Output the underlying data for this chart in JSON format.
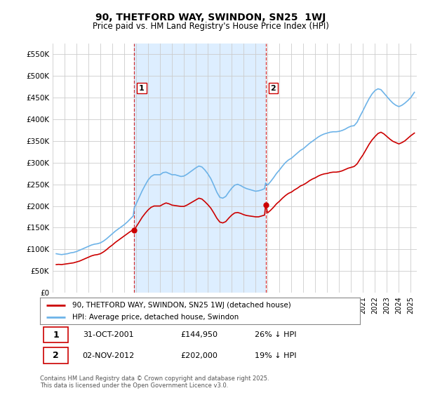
{
  "title": "90, THETFORD WAY, SWINDON, SN25  1WJ",
  "subtitle": "Price paid vs. HM Land Registry's House Price Index (HPI)",
  "ylim": [
    0,
    575000
  ],
  "yticks": [
    0,
    50000,
    100000,
    150000,
    200000,
    250000,
    300000,
    350000,
    400000,
    450000,
    500000,
    550000
  ],
  "xlim_start": 1995.3,
  "xlim_end": 2025.5,
  "background_color": "#ffffff",
  "plot_bg_color": "#ffffff",
  "shade_color": "#ddeeff",
  "hpi_color": "#6db3e8",
  "price_color": "#cc0000",
  "purchase1_date": 2001.83,
  "purchase1_price": 144950,
  "purchase2_date": 2012.84,
  "purchase2_price": 202000,
  "legend_label1": "90, THETFORD WAY, SWINDON, SN25 1WJ (detached house)",
  "legend_label2": "HPI: Average price, detached house, Swindon",
  "table_row1": [
    "1",
    "31-OCT-2001",
    "£144,950",
    "26% ↓ HPI"
  ],
  "table_row2": [
    "2",
    "02-NOV-2012",
    "£202,000",
    "19% ↓ HPI"
  ],
  "footnote": "Contains HM Land Registry data © Crown copyright and database right 2025.\nThis data is licensed under the Open Government Licence v3.0.",
  "hpi_data": [
    [
      1995.3,
      90000
    ],
    [
      1995.5,
      89000
    ],
    [
      1995.75,
      88000
    ],
    [
      1996.0,
      89000
    ],
    [
      1996.25,
      90000
    ],
    [
      1996.5,
      92000
    ],
    [
      1996.75,
      93000
    ],
    [
      1997.0,
      95000
    ],
    [
      1997.25,
      98000
    ],
    [
      1997.5,
      101000
    ],
    [
      1997.75,
      104000
    ],
    [
      1998.0,
      107000
    ],
    [
      1998.25,
      110000
    ],
    [
      1998.5,
      112000
    ],
    [
      1998.75,
      113000
    ],
    [
      1999.0,
      115000
    ],
    [
      1999.25,
      119000
    ],
    [
      1999.5,
      124000
    ],
    [
      1999.75,
      130000
    ],
    [
      2000.0,
      136000
    ],
    [
      2000.25,
      142000
    ],
    [
      2000.5,
      147000
    ],
    [
      2000.75,
      152000
    ],
    [
      2001.0,
      157000
    ],
    [
      2001.25,
      163000
    ],
    [
      2001.5,
      170000
    ],
    [
      2001.75,
      177000
    ],
    [
      2001.83,
      195000
    ],
    [
      2002.0,
      205000
    ],
    [
      2002.25,
      220000
    ],
    [
      2002.5,
      235000
    ],
    [
      2002.75,
      248000
    ],
    [
      2003.0,
      260000
    ],
    [
      2003.25,
      268000
    ],
    [
      2003.5,
      272000
    ],
    [
      2003.75,
      272000
    ],
    [
      2004.0,
      272000
    ],
    [
      2004.25,
      277000
    ],
    [
      2004.5,
      278000
    ],
    [
      2004.75,
      275000
    ],
    [
      2005.0,
      272000
    ],
    [
      2005.25,
      272000
    ],
    [
      2005.5,
      270000
    ],
    [
      2005.75,
      268000
    ],
    [
      2006.0,
      269000
    ],
    [
      2006.25,
      273000
    ],
    [
      2006.5,
      278000
    ],
    [
      2006.75,
      283000
    ],
    [
      2007.0,
      288000
    ],
    [
      2007.25,
      292000
    ],
    [
      2007.5,
      290000
    ],
    [
      2007.75,
      283000
    ],
    [
      2008.0,
      274000
    ],
    [
      2008.25,
      263000
    ],
    [
      2008.5,
      248000
    ],
    [
      2008.75,
      232000
    ],
    [
      2009.0,
      220000
    ],
    [
      2009.25,
      218000
    ],
    [
      2009.5,
      222000
    ],
    [
      2009.75,
      232000
    ],
    [
      2010.0,
      241000
    ],
    [
      2010.25,
      248000
    ],
    [
      2010.5,
      250000
    ],
    [
      2010.75,
      247000
    ],
    [
      2011.0,
      243000
    ],
    [
      2011.25,
      240000
    ],
    [
      2011.5,
      238000
    ],
    [
      2011.75,
      236000
    ],
    [
      2012.0,
      234000
    ],
    [
      2012.25,
      235000
    ],
    [
      2012.5,
      237000
    ],
    [
      2012.75,
      240000
    ],
    [
      2012.84,
      253000
    ],
    [
      2013.0,
      248000
    ],
    [
      2013.25,
      256000
    ],
    [
      2013.5,
      265000
    ],
    [
      2013.75,
      275000
    ],
    [
      2014.0,
      283000
    ],
    [
      2014.25,
      292000
    ],
    [
      2014.5,
      300000
    ],
    [
      2014.75,
      306000
    ],
    [
      2015.0,
      310000
    ],
    [
      2015.25,
      316000
    ],
    [
      2015.5,
      322000
    ],
    [
      2015.75,
      328000
    ],
    [
      2016.0,
      332000
    ],
    [
      2016.25,
      338000
    ],
    [
      2016.5,
      344000
    ],
    [
      2016.75,
      349000
    ],
    [
      2017.0,
      354000
    ],
    [
      2017.25,
      359000
    ],
    [
      2017.5,
      363000
    ],
    [
      2017.75,
      366000
    ],
    [
      2018.0,
      368000
    ],
    [
      2018.25,
      370000
    ],
    [
      2018.5,
      371000
    ],
    [
      2018.75,
      371000
    ],
    [
      2019.0,
      372000
    ],
    [
      2019.25,
      374000
    ],
    [
      2019.5,
      377000
    ],
    [
      2019.75,
      381000
    ],
    [
      2020.0,
      384000
    ],
    [
      2020.25,
      385000
    ],
    [
      2020.5,
      393000
    ],
    [
      2020.75,
      407000
    ],
    [
      2021.0,
      420000
    ],
    [
      2021.25,
      434000
    ],
    [
      2021.5,
      447000
    ],
    [
      2021.75,
      458000
    ],
    [
      2022.0,
      466000
    ],
    [
      2022.25,
      470000
    ],
    [
      2022.5,
      468000
    ],
    [
      2022.75,
      460000
    ],
    [
      2023.0,
      452000
    ],
    [
      2023.25,
      444000
    ],
    [
      2023.5,
      437000
    ],
    [
      2023.75,
      432000
    ],
    [
      2024.0,
      429000
    ],
    [
      2024.25,
      432000
    ],
    [
      2024.5,
      437000
    ],
    [
      2024.75,
      443000
    ],
    [
      2025.0,
      450000
    ],
    [
      2025.3,
      462000
    ]
  ],
  "price_data": [
    [
      1995.3,
      65000
    ],
    [
      1995.5,
      65500
    ],
    [
      1995.75,
      65000
    ],
    [
      1996.0,
      66000
    ],
    [
      1996.25,
      67000
    ],
    [
      1996.5,
      68000
    ],
    [
      1996.75,
      69000
    ],
    [
      1997.0,
      71000
    ],
    [
      1997.25,
      73000
    ],
    [
      1997.5,
      76000
    ],
    [
      1997.75,
      79000
    ],
    [
      1998.0,
      82000
    ],
    [
      1998.25,
      85000
    ],
    [
      1998.5,
      87000
    ],
    [
      1998.75,
      88000
    ],
    [
      1999.0,
      90000
    ],
    [
      1999.25,
      94000
    ],
    [
      1999.5,
      99000
    ],
    [
      1999.75,
      105000
    ],
    [
      2000.0,
      110000
    ],
    [
      2000.25,
      116000
    ],
    [
      2000.5,
      121000
    ],
    [
      2000.75,
      126000
    ],
    [
      2001.0,
      131000
    ],
    [
      2001.25,
      136000
    ],
    [
      2001.5,
      141000
    ],
    [
      2001.75,
      145000
    ],
    [
      2001.83,
      144950
    ],
    [
      2002.0,
      152000
    ],
    [
      2002.25,
      163000
    ],
    [
      2002.5,
      174000
    ],
    [
      2002.75,
      183000
    ],
    [
      2003.0,
      191000
    ],
    [
      2003.25,
      197000
    ],
    [
      2003.5,
      200000
    ],
    [
      2003.75,
      200000
    ],
    [
      2004.0,
      200000
    ],
    [
      2004.25,
      204000
    ],
    [
      2004.5,
      207000
    ],
    [
      2004.75,
      205000
    ],
    [
      2005.0,
      202000
    ],
    [
      2005.25,
      201000
    ],
    [
      2005.5,
      200000
    ],
    [
      2005.75,
      199000
    ],
    [
      2006.0,
      199000
    ],
    [
      2006.25,
      202000
    ],
    [
      2006.5,
      206000
    ],
    [
      2006.75,
      210000
    ],
    [
      2007.0,
      214000
    ],
    [
      2007.25,
      218000
    ],
    [
      2007.5,
      216000
    ],
    [
      2007.75,
      210000
    ],
    [
      2008.0,
      203000
    ],
    [
      2008.25,
      195000
    ],
    [
      2008.5,
      184000
    ],
    [
      2008.75,
      172000
    ],
    [
      2009.0,
      163000
    ],
    [
      2009.25,
      161000
    ],
    [
      2009.5,
      164000
    ],
    [
      2009.75,
      172000
    ],
    [
      2010.0,
      179000
    ],
    [
      2010.25,
      184000
    ],
    [
      2010.5,
      185000
    ],
    [
      2010.75,
      183000
    ],
    [
      2011.0,
      180000
    ],
    [
      2011.25,
      178000
    ],
    [
      2011.5,
      177000
    ],
    [
      2011.75,
      176000
    ],
    [
      2012.0,
      175000
    ],
    [
      2012.25,
      175000
    ],
    [
      2012.5,
      177000
    ],
    [
      2012.75,
      179000
    ],
    [
      2012.84,
      202000
    ],
    [
      2013.0,
      184000
    ],
    [
      2013.25,
      190000
    ],
    [
      2013.5,
      197000
    ],
    [
      2013.75,
      205000
    ],
    [
      2014.0,
      211000
    ],
    [
      2014.25,
      218000
    ],
    [
      2014.5,
      224000
    ],
    [
      2014.75,
      229000
    ],
    [
      2015.0,
      232000
    ],
    [
      2015.25,
      237000
    ],
    [
      2015.5,
      241000
    ],
    [
      2015.75,
      246000
    ],
    [
      2016.0,
      249000
    ],
    [
      2016.25,
      253000
    ],
    [
      2016.5,
      258000
    ],
    [
      2016.75,
      262000
    ],
    [
      2017.0,
      265000
    ],
    [
      2017.25,
      269000
    ],
    [
      2017.5,
      272000
    ],
    [
      2017.75,
      274000
    ],
    [
      2018.0,
      275000
    ],
    [
      2018.25,
      277000
    ],
    [
      2018.5,
      278000
    ],
    [
      2018.75,
      278000
    ],
    [
      2019.0,
      279000
    ],
    [
      2019.25,
      281000
    ],
    [
      2019.5,
      284000
    ],
    [
      2019.75,
      287000
    ],
    [
      2020.0,
      289000
    ],
    [
      2020.25,
      291000
    ],
    [
      2020.5,
      297000
    ],
    [
      2020.75,
      308000
    ],
    [
      2021.0,
      318000
    ],
    [
      2021.25,
      330000
    ],
    [
      2021.5,
      342000
    ],
    [
      2021.75,
      352000
    ],
    [
      2022.0,
      360000
    ],
    [
      2022.25,
      367000
    ],
    [
      2022.5,
      370000
    ],
    [
      2022.75,
      366000
    ],
    [
      2023.0,
      360000
    ],
    [
      2023.25,
      354000
    ],
    [
      2023.5,
      349000
    ],
    [
      2023.75,
      346000
    ],
    [
      2024.0,
      343000
    ],
    [
      2024.25,
      346000
    ],
    [
      2024.5,
      350000
    ],
    [
      2024.75,
      356000
    ],
    [
      2025.0,
      362000
    ],
    [
      2025.3,
      368000
    ]
  ]
}
